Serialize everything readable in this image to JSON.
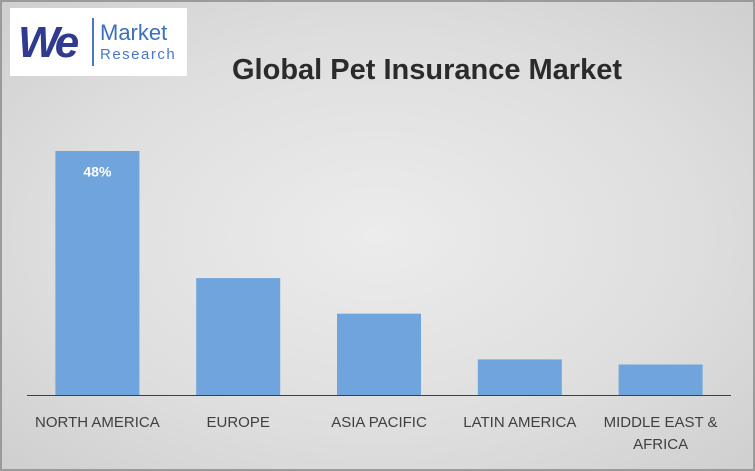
{
  "logo": {
    "mark": "We",
    "brand": "Market",
    "sub": "Research"
  },
  "chart_data": {
    "type": "bar",
    "title": "Global Pet Insurance Market",
    "categories": [
      "NORTH AMERICA",
      "EUROPE",
      "ASIA PACIFIC",
      "LATIN AMERICA",
      "MIDDLE EAST & AFRICA"
    ],
    "values": [
      48,
      23,
      16,
      7,
      6
    ],
    "value_labels": [
      "48%",
      null,
      null,
      null,
      null
    ],
    "color": "#6fa5dc"
  }
}
